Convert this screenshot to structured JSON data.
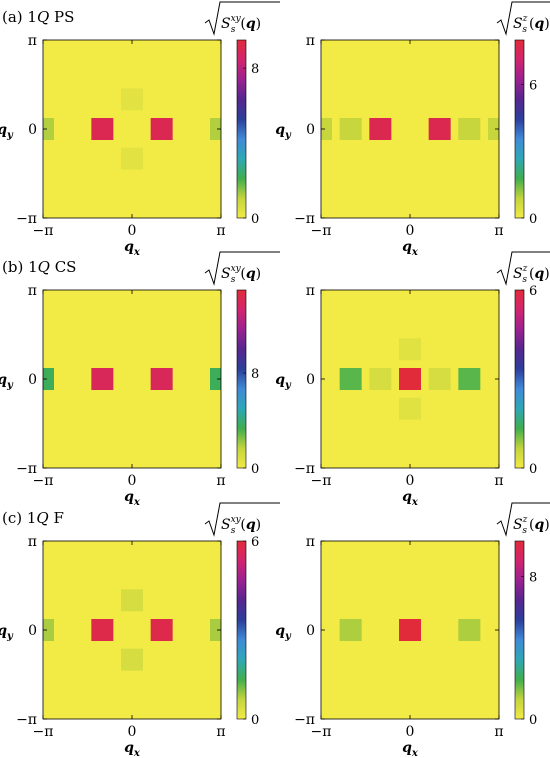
{
  "colors": {
    "background": "#f2ea45",
    "colormap": [
      "#f2ea45",
      "#c3d43c",
      "#3fae4f",
      "#2fa7b6",
      "#3f8ad8",
      "#2d3e9c",
      "#56268f",
      "#9b2191",
      "#d2246e",
      "#e22b3a"
    ]
  },
  "chart_data": [
    {
      "type": "heatmap",
      "panel_label": "(a) 1Q PS",
      "colorbar_title": "√S_s^{xy}(q)",
      "colorbar_ticks": [
        "0",
        "8"
      ],
      "colorbar_range": [
        0,
        9.5
      ],
      "xlabel": "q_x",
      "ylabel": "q_y",
      "x_ticks": [
        "−π",
        "0",
        "π"
      ],
      "y_ticks": [
        "−π",
        "0",
        "π"
      ],
      "xlim": [
        -3.1416,
        3.1416
      ],
      "ylim": [
        -3.1416,
        3.1416
      ],
      "peaks": [
        {
          "qx": -1.0472,
          "qy": 0,
          "value": 9.0
        },
        {
          "qx": 1.0472,
          "qy": 0,
          "value": 9.0
        },
        {
          "qx": -3.1416,
          "qy": 0,
          "value": 1.2
        },
        {
          "qx": 3.1416,
          "qy": 0,
          "value": 1.2
        },
        {
          "qx": 0,
          "qy": 1.0472,
          "value": 0.35
        },
        {
          "qx": 0,
          "qy": -1.0472,
          "value": 0.35
        }
      ]
    },
    {
      "type": "heatmap",
      "panel_label": "",
      "colorbar_title": "√S_s^z(q)",
      "colorbar_ticks": [
        "0",
        "6"
      ],
      "colorbar_range": [
        0,
        8
      ],
      "xlabel": "q_x",
      "ylabel": "q_y",
      "x_ticks": [
        "−π",
        "0",
        "π"
      ],
      "y_ticks": [
        "−π",
        "0",
        "π"
      ],
      "xlim": [
        -3.1416,
        3.1416
      ],
      "ylim": [
        -3.1416,
        3.1416
      ],
      "peaks": [
        {
          "qx": -1.0472,
          "qy": 0,
          "value": 7.6
        },
        {
          "qx": 1.0472,
          "qy": 0,
          "value": 7.6
        },
        {
          "qx": -2.0944,
          "qy": 0,
          "value": 0.8
        },
        {
          "qx": 2.0944,
          "qy": 0,
          "value": 0.8
        },
        {
          "qx": -3.1416,
          "qy": 0,
          "value": 0.8
        },
        {
          "qx": 3.1416,
          "qy": 0,
          "value": 0.8
        }
      ]
    },
    {
      "type": "heatmap",
      "panel_label": "(b) 1Q CS",
      "colorbar_title": "√S_s^{xy}(q)",
      "colorbar_ticks": [
        "0",
        "8"
      ],
      "colorbar_range": [
        0,
        15
      ],
      "xlabel": "q_x",
      "ylabel": "q_y",
      "x_ticks": [
        "−π",
        "0",
        "π"
      ],
      "y_ticks": [
        "−π",
        "0",
        "π"
      ],
      "xlim": [
        -3.1416,
        3.1416
      ],
      "ylim": [
        -3.1416,
        3.1416
      ],
      "peaks": [
        {
          "qx": -1.0472,
          "qy": 0,
          "value": 14.0
        },
        {
          "qx": 1.0472,
          "qy": 0,
          "value": 14.0
        },
        {
          "qx": -3.1416,
          "qy": 0,
          "value": 3.5
        },
        {
          "qx": 3.1416,
          "qy": 0,
          "value": 3.5
        }
      ]
    },
    {
      "type": "heatmap",
      "panel_label": "",
      "colorbar_title": "√S_s^z(q)",
      "colorbar_ticks": [
        "0",
        "6"
      ],
      "colorbar_range": [
        0,
        6
      ],
      "xlabel": "q_x",
      "ylabel": "q_y",
      "x_ticks": [
        "−π",
        "0",
        "π"
      ],
      "y_ticks": [
        "−π",
        "0",
        "π"
      ],
      "xlim": [
        -3.1416,
        3.1416
      ],
      "ylim": [
        -3.1416,
        3.1416
      ],
      "peaks": [
        {
          "qx": 0,
          "qy": 0,
          "value": 6.0
        },
        {
          "qx": -2.0944,
          "qy": 0,
          "value": 1.2
        },
        {
          "qx": 2.0944,
          "qy": 0,
          "value": 1.2
        },
        {
          "qx": -1.0472,
          "qy": 0,
          "value": 0.4
        },
        {
          "qx": 1.0472,
          "qy": 0,
          "value": 0.4
        },
        {
          "qx": 0,
          "qy": 1.0472,
          "value": 0.25
        },
        {
          "qx": 0,
          "qy": -1.0472,
          "value": 0.25
        }
      ]
    },
    {
      "type": "heatmap",
      "panel_label": "(c) 1Q F",
      "colorbar_title": "√S_s^{xy}(q)",
      "colorbar_ticks": [
        "0",
        "6"
      ],
      "colorbar_range": [
        0,
        6
      ],
      "xlabel": "q_x",
      "ylabel": "q_y",
      "x_ticks": [
        "−π",
        "0",
        "π"
      ],
      "y_ticks": [
        "−π",
        "0",
        "π"
      ],
      "xlim": [
        -3.1416,
        3.1416
      ],
      "ylim": [
        -3.1416,
        3.1416
      ],
      "peaks": [
        {
          "qx": -1.0472,
          "qy": 0,
          "value": 5.8
        },
        {
          "qx": 1.0472,
          "qy": 0,
          "value": 5.8
        },
        {
          "qx": -3.1416,
          "qy": 0,
          "value": 0.8
        },
        {
          "qx": 3.1416,
          "qy": 0,
          "value": 0.8
        },
        {
          "qx": 0,
          "qy": 1.0472,
          "value": 0.4
        },
        {
          "qx": 0,
          "qy": -1.0472,
          "value": 0.4
        }
      ]
    },
    {
      "type": "heatmap",
      "panel_label": "",
      "colorbar_title": "√S_s^z(q)",
      "colorbar_ticks": [
        "0",
        "8"
      ],
      "colorbar_range": [
        0,
        10
      ],
      "xlabel": "q_x",
      "ylabel": "q_y",
      "x_ticks": [
        "−π",
        "0",
        "π"
      ],
      "y_ticks": [
        "−π",
        "0",
        "π"
      ],
      "xlim": [
        -3.1416,
        3.1416
      ],
      "ylim": [
        -3.1416,
        3.1416
      ],
      "peaks": [
        {
          "qx": 0,
          "qy": 0,
          "value": 10.0
        },
        {
          "qx": -2.0944,
          "qy": 0,
          "value": 1.3
        },
        {
          "qx": 2.0944,
          "qy": 0,
          "value": 1.3
        }
      ]
    }
  ]
}
